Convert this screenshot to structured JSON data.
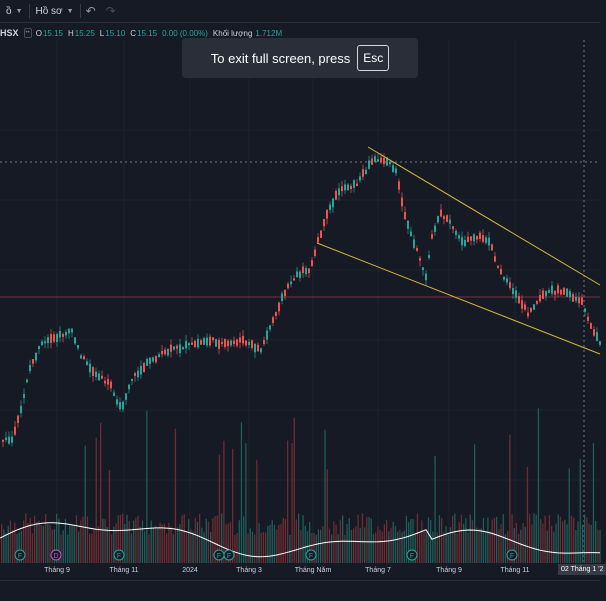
{
  "toolbar": {
    "left_cut_label": "ồ",
    "profile_label": "Hồ sơ",
    "undo_icon": "undo-icon",
    "redo_icon": "redo-icon"
  },
  "legend": {
    "symbol": "HSX",
    "open_label": "O",
    "open": "15.15",
    "high_label": "H",
    "high": "15.25",
    "low_label": "L",
    "low": "15.10",
    "close_label": "C",
    "close": "15.15",
    "change": "0.00 (0.00%)",
    "volume_label": "Khối lượng",
    "volume": "1.712M"
  },
  "toast": {
    "text": "To exit full screen, press",
    "key": "Esc"
  },
  "time_axis": {
    "ticks": [
      "Tháng 9",
      "Tháng 11",
      "2024",
      "Tháng 3",
      "Tháng Năm",
      "Tháng 7",
      "Tháng 9",
      "Tháng 11"
    ],
    "crosshair_label": "02 Tháng 1 '2"
  },
  "markers": [
    "F",
    "D",
    "F",
    "F",
    "F",
    "F",
    "F",
    "F"
  ],
  "colors": {
    "up": "#26a69a",
    "down": "#ef5350",
    "background": "#161a25",
    "trendline": "#d4b53a",
    "volume_ma": "#ffffff",
    "crosshair": "#787b86",
    "price_line": "#7a3040"
  }
}
